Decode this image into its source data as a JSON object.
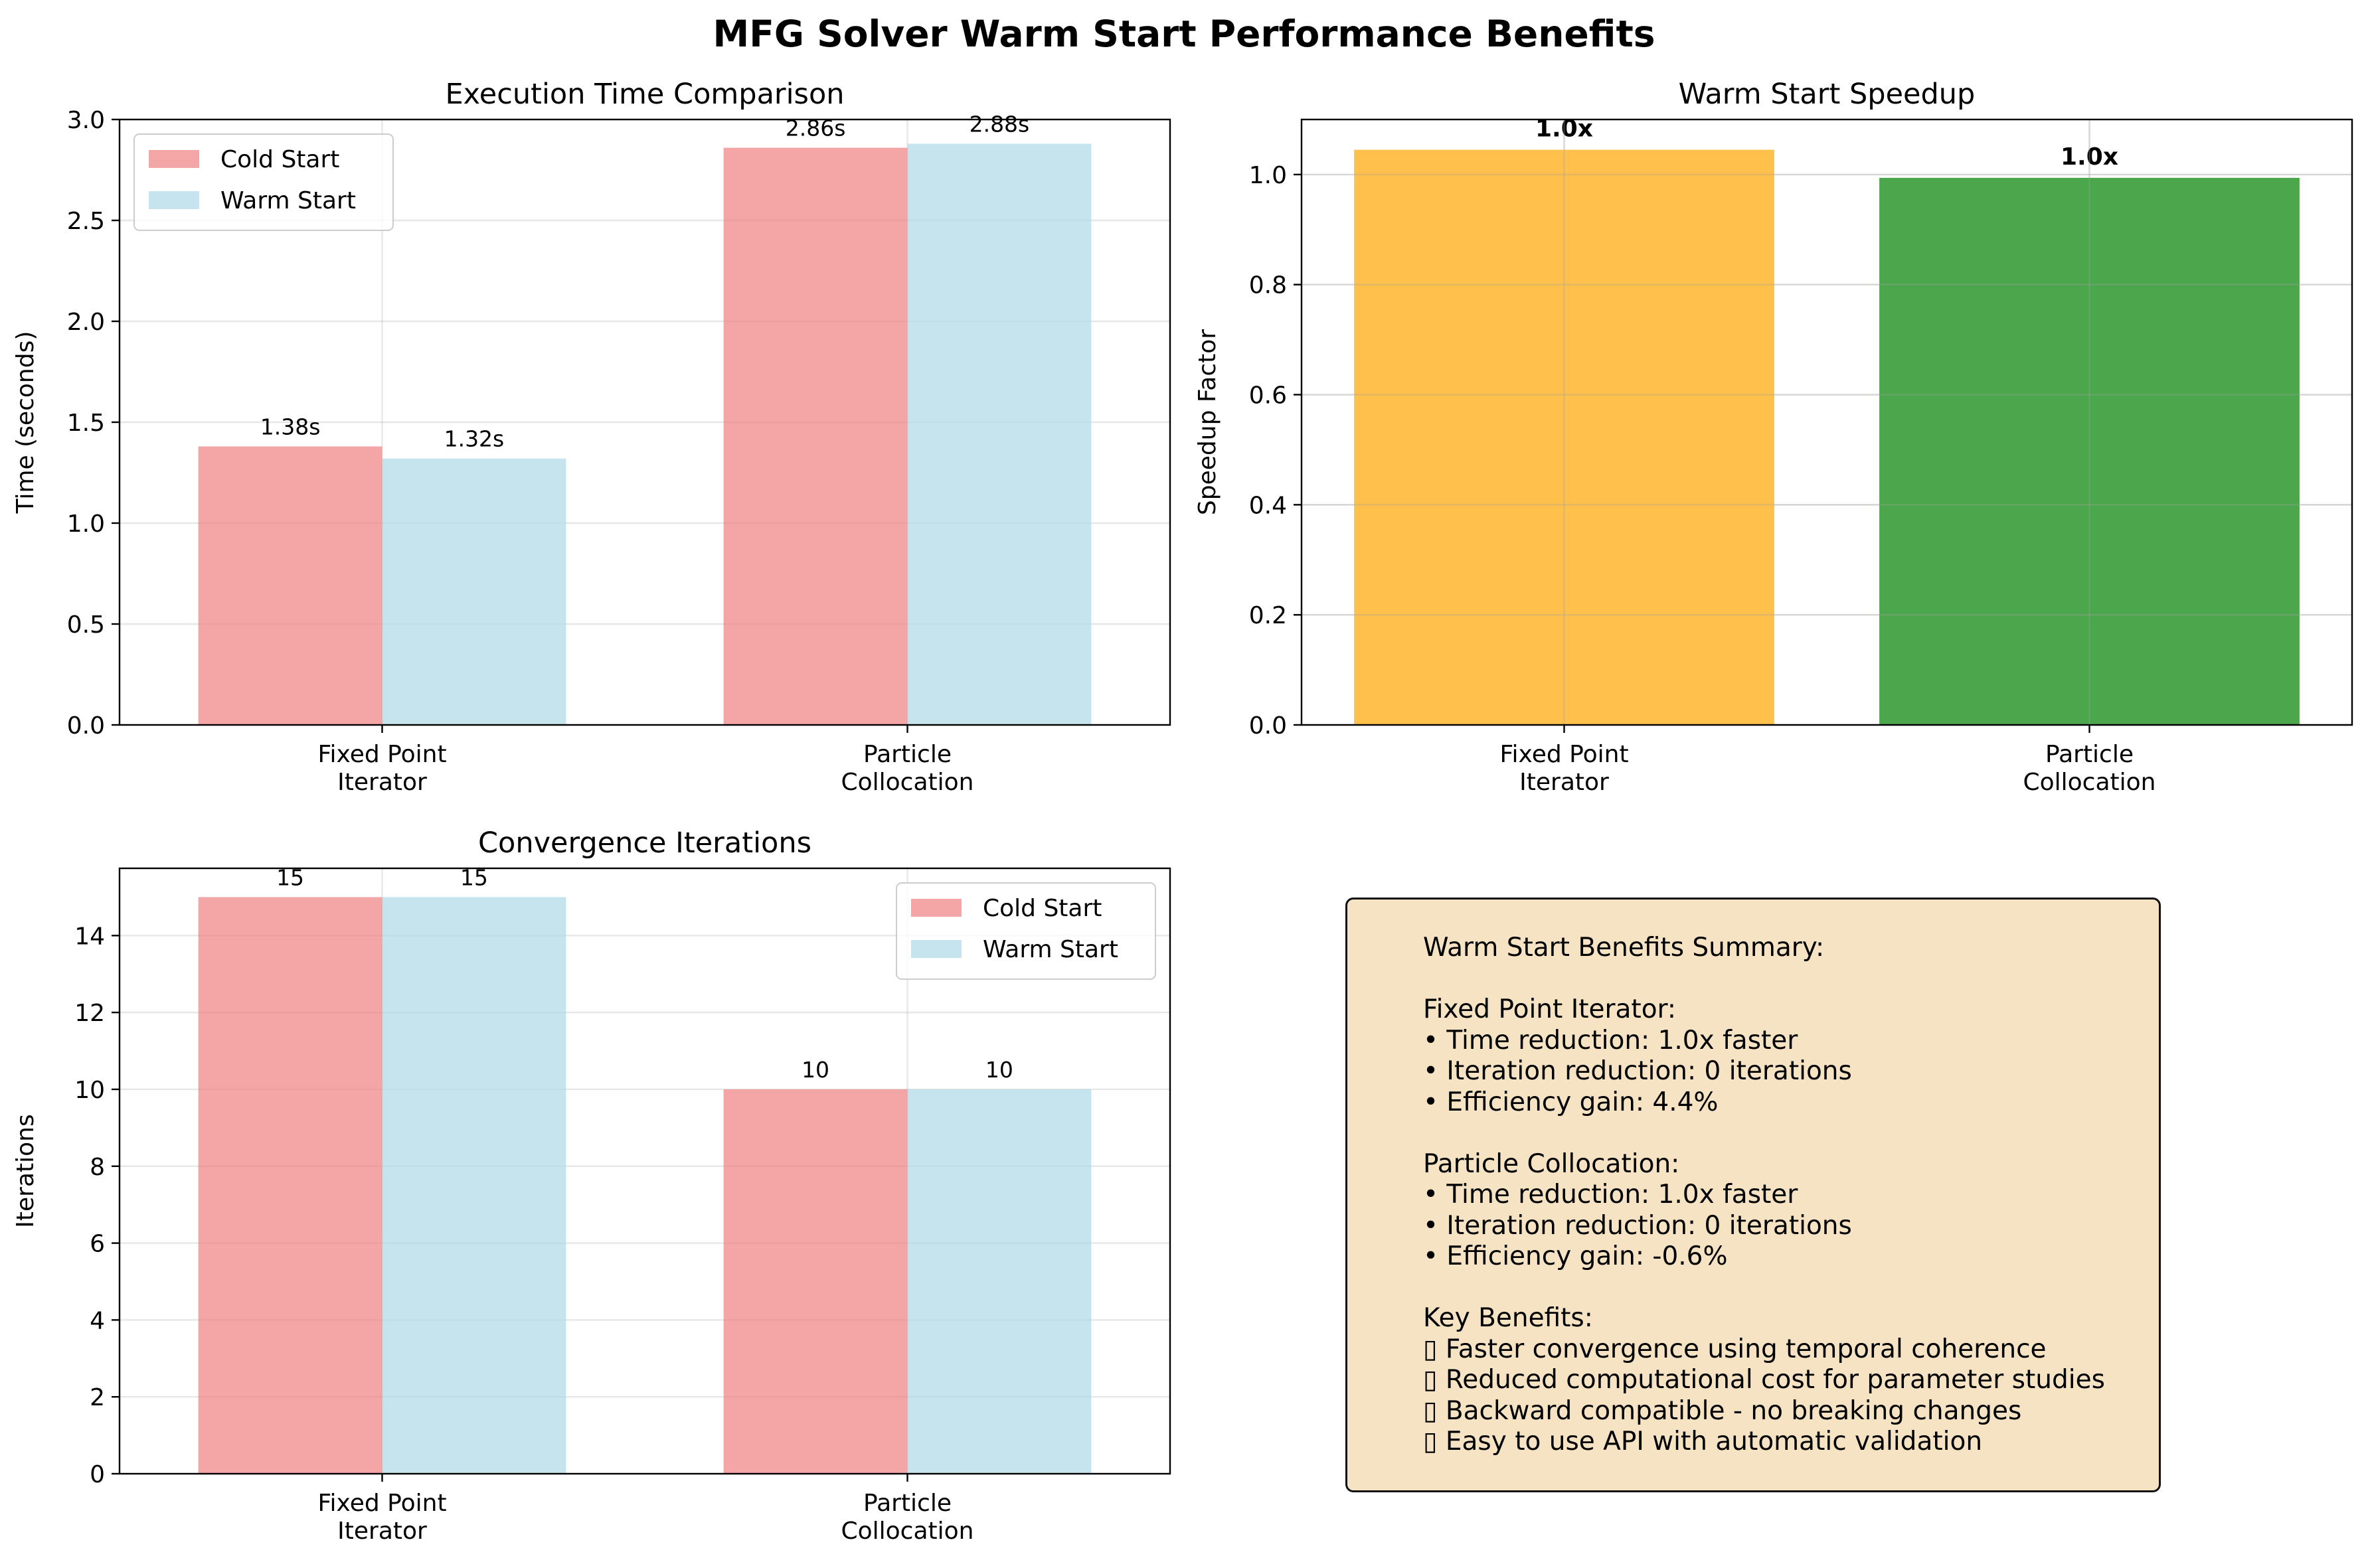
{
  "figure": {
    "title": "MFG Solver Warm Start Performance Benefits"
  },
  "chart_data": [
    {
      "type": "bar",
      "title": "Execution Time Comparison",
      "xlabel": "",
      "ylabel": "Time (seconds)",
      "categories": [
        "Fixed Point\nIterator",
        "Particle\nCollocation"
      ],
      "series": [
        {
          "name": "Cold Start",
          "values": [
            1.38,
            2.86
          ],
          "color": "#f08080",
          "labels": [
            "1.38s",
            "2.86s"
          ]
        },
        {
          "name": "Warm Start",
          "values": [
            1.32,
            2.88
          ],
          "color": "#add8e6",
          "labels": [
            "1.32s",
            "2.88s"
          ]
        }
      ],
      "ylim": [
        0,
        3.0
      ],
      "yticks": [
        "0.0",
        "0.5",
        "1.0",
        "1.5",
        "2.0",
        "2.5",
        "3.0"
      ],
      "grid": true,
      "legend": "upper left"
    },
    {
      "type": "bar",
      "title": "Warm Start Speedup",
      "xlabel": "",
      "ylabel": "Speedup Factor",
      "categories": [
        "Fixed Point\nIterator",
        "Particle\nCollocation"
      ],
      "values": [
        1.045,
        0.994
      ],
      "labels": [
        "1.0x",
        "1.0x"
      ],
      "colors": [
        "#ffa500",
        "#008000"
      ],
      "ylim": [
        0,
        1.1
      ],
      "yticks": [
        "0.0",
        "0.2",
        "0.4",
        "0.6",
        "0.8",
        "1.0"
      ],
      "grid": true
    },
    {
      "type": "bar",
      "title": "Convergence Iterations",
      "xlabel": "",
      "ylabel": "Iterations",
      "categories": [
        "Fixed Point\nIterator",
        "Particle\nCollocation"
      ],
      "series": [
        {
          "name": "Cold Start",
          "values": [
            15,
            10
          ],
          "color": "#f08080",
          "labels": [
            "15",
            "10"
          ]
        },
        {
          "name": "Warm Start",
          "values": [
            15,
            10
          ],
          "color": "#add8e6",
          "labels": [
            "15",
            "10"
          ]
        }
      ],
      "ylim": [
        0,
        15.75
      ],
      "yticks": [
        "0",
        "2",
        "4",
        "6",
        "8",
        "10",
        "12",
        "14"
      ],
      "grid": true,
      "legend": "upper right"
    }
  ],
  "summary": {
    "text": "Warm Start Benefits Summary:\n\nFixed Point Iterator:\n• Time reduction: 1.0x faster\n• Iteration reduction: 0 iterations\n• Efficiency gain: 4.4%\n\nParticle Collocation:\n• Time reduction: 1.0x faster\n• Iteration reduction: 0 iterations\n• Efficiency gain: -0.6%\n\nKey Benefits:\n▯ Faster convergence using temporal coherence\n▯ Reduced computational cost for parameter studies\n▯ Backward compatible - no breaking changes\n▯ Easy to use API with automatic validation"
  }
}
